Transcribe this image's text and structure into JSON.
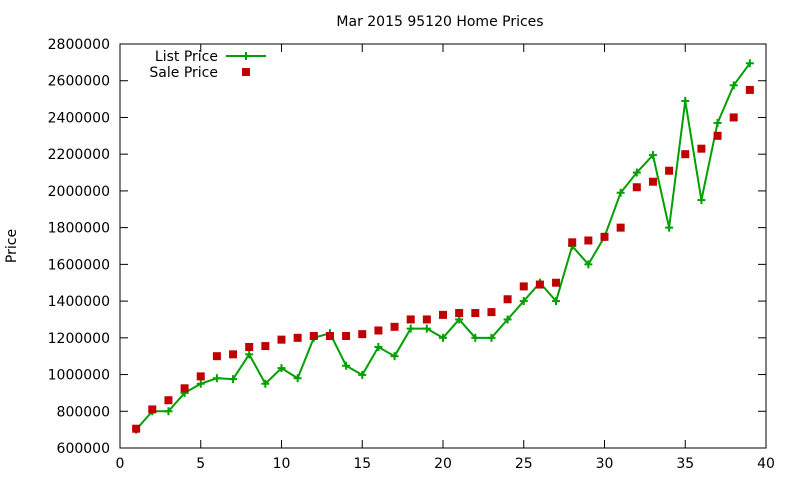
{
  "chart_data": {
    "type": "scatter",
    "title": "Mar 2015 95120 Home Prices",
    "xlabel": "",
    "ylabel": "Price",
    "xlim": [
      0,
      40
    ],
    "ylim": [
      600000,
      2800000
    ],
    "xticks": [
      0,
      5,
      10,
      15,
      20,
      25,
      30,
      35,
      40
    ],
    "yticks": [
      600000,
      800000,
      1000000,
      1200000,
      1400000,
      1600000,
      1800000,
      2000000,
      2200000,
      2400000,
      2600000,
      2800000
    ],
    "grid": false,
    "legend_position": "top-left",
    "series": [
      {
        "name": "List Price",
        "style": "line-with-plus-markers",
        "color": "#00a000",
        "x": [
          1,
          2,
          3,
          4,
          5,
          6,
          7,
          8,
          9,
          10,
          11,
          12,
          13,
          14,
          15,
          16,
          17,
          18,
          19,
          20,
          21,
          22,
          23,
          24,
          25,
          26,
          27,
          28,
          29,
          30,
          31,
          32,
          33,
          34,
          35,
          36,
          37,
          38,
          39
        ],
        "y": [
          700000,
          800000,
          800000,
          900000,
          950000,
          980000,
          975000,
          1110000,
          950000,
          1035000,
          980000,
          1200000,
          1225000,
          1048000,
          998000,
          1150000,
          1100000,
          1250000,
          1250000,
          1200000,
          1300000,
          1200000,
          1200000,
          1300000,
          1400000,
          1500000,
          1400000,
          1700000,
          1600000,
          1750000,
          1990000,
          2100000,
          2195000,
          1800000,
          2490000,
          1950000,
          2370000,
          2575000,
          2695000
        ]
      },
      {
        "name": "Sale Price",
        "style": "square-markers",
        "color": "#c00000",
        "x": [
          1,
          2,
          3,
          4,
          5,
          6,
          7,
          8,
          9,
          10,
          11,
          12,
          13,
          14,
          15,
          16,
          17,
          18,
          19,
          20,
          21,
          22,
          23,
          24,
          25,
          26,
          27,
          28,
          29,
          30,
          31,
          32,
          33,
          34,
          35,
          36,
          37,
          38,
          39
        ],
        "y": [
          705000,
          810000,
          860000,
          925000,
          990000,
          1100000,
          1110000,
          1150000,
          1155000,
          1190000,
          1200000,
          1210000,
          1210000,
          1210000,
          1220000,
          1240000,
          1260000,
          1300000,
          1300000,
          1325000,
          1335000,
          1335000,
          1340000,
          1410000,
          1480000,
          1490000,
          1500000,
          1720000,
          1730000,
          1750000,
          1800000,
          2020000,
          2050000,
          2110000,
          2200000,
          2230000,
          2300000,
          2400000,
          2550000
        ]
      }
    ]
  }
}
